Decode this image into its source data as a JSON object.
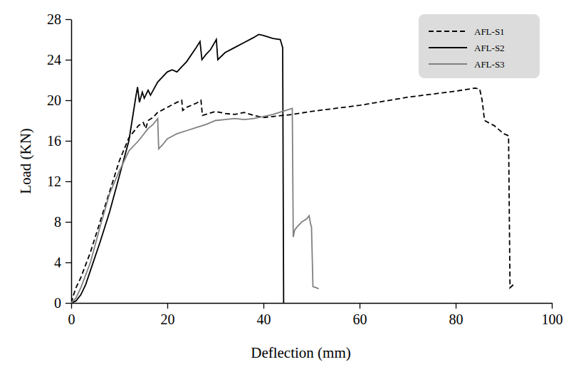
{
  "chart_data": {
    "type": "line",
    "x_label": "Deflection (mm)",
    "y_label": "Load (KN)",
    "xlim": [
      0,
      100
    ],
    "xticks": [
      0,
      20,
      40,
      60,
      80,
      100
    ],
    "ylim": [
      0,
      28
    ],
    "yticks": [
      0,
      4,
      8,
      12,
      16,
      20,
      24,
      28
    ],
    "legend": "top-right",
    "series": [
      {
        "name": "AFL-S1",
        "color": "#000000",
        "line_style": "dashed",
        "x": [
          0,
          0.5,
          1,
          2,
          4,
          6,
          8,
          10,
          12,
          14,
          15,
          15.5,
          16,
          17,
          18,
          20,
          22,
          23,
          23.2,
          24,
          25,
          26,
          27,
          27.3,
          28,
          30,
          32,
          34,
          36,
          38,
          40,
          42,
          46,
          50,
          55,
          60,
          65,
          70,
          75,
          80,
          84,
          85,
          85.5,
          86,
          88,
          90,
          91,
          91.3,
          92
        ],
        "values": [
          0,
          0.8,
          1.5,
          2.5,
          5,
          8,
          11,
          14,
          16.3,
          17.5,
          17.8,
          17.2,
          18,
          18.3,
          18.8,
          19.3,
          19.8,
          20,
          19,
          19.3,
          19.5,
          19.7,
          20,
          18.5,
          18.6,
          18.9,
          18.7,
          18.6,
          18.8,
          18.5,
          18.3,
          18.4,
          18.6,
          18.9,
          19.2,
          19.5,
          19.9,
          20.3,
          20.6,
          20.9,
          21.2,
          21.1,
          20,
          18,
          17.5,
          16.7,
          16.5,
          1.5,
          1.8
        ]
      },
      {
        "name": "AFL-S2",
        "color": "#000000",
        "line_style": "solid",
        "x": [
          0,
          1,
          2,
          3,
          4,
          6,
          8,
          10,
          12,
          13,
          13.5,
          13.8,
          14.2,
          14.8,
          15.2,
          16,
          16.5,
          18,
          20,
          21,
          22,
          24,
          26,
          26.8,
          27.2,
          28,
          29,
          30.2,
          30.5,
          32,
          34,
          36,
          38,
          39,
          40,
          42,
          43.5,
          44,
          44.2
        ],
        "values": [
          0,
          0.2,
          0.8,
          1.8,
          3.2,
          6,
          9,
          12.5,
          16,
          19,
          20.5,
          21.3,
          19.8,
          20.8,
          20.2,
          21,
          20.5,
          21.8,
          22.8,
          23,
          22.8,
          23.8,
          25.2,
          25.8,
          24,
          24.5,
          25,
          26,
          24,
          24.7,
          25.2,
          25.7,
          26.2,
          26.5,
          26.4,
          26.1,
          26,
          25.2,
          0
        ]
      },
      {
        "name": "AFL-S3",
        "color": "#808080",
        "line_style": "solid",
        "x": [
          0,
          1,
          2,
          4,
          6,
          8,
          10,
          12,
          14,
          16,
          17,
          18,
          18.2,
          19,
          20,
          22,
          24,
          26,
          28,
          29,
          30,
          32,
          34,
          36,
          38,
          40,
          42,
          44,
          46,
          46.2,
          46.5,
          47,
          48,
          49,
          49.5,
          49.8,
          50,
          50.3,
          51,
          51.5
        ],
        "values": [
          0,
          0.5,
          1.5,
          4,
          7.5,
          10.8,
          13,
          15,
          16,
          17.2,
          17.6,
          18.2,
          15.2,
          15.6,
          16.2,
          16.7,
          17,
          17.3,
          17.6,
          17.8,
          18,
          18.1,
          18.2,
          18.1,
          18.2,
          18.4,
          18.6,
          18.9,
          19.2,
          6.5,
          7.2,
          7.5,
          8,
          8.3,
          8.6,
          7.8,
          7.5,
          1.6,
          1.5,
          1.4
        ]
      }
    ]
  }
}
